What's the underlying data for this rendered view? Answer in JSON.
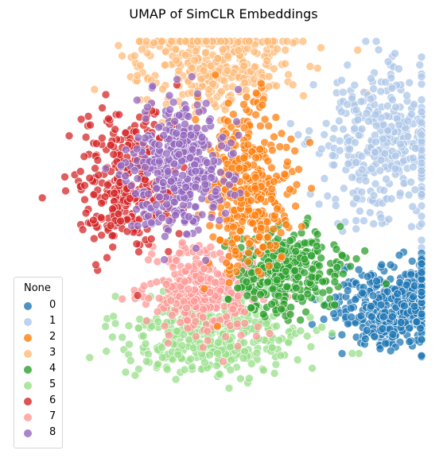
{
  "chart_data": {
    "type": "scatter",
    "title": "UMAP of SimCLR Embeddings",
    "xlabel": "",
    "ylabel": "",
    "axes_visible": false,
    "grid": false,
    "legend": {
      "title": "None",
      "placement": "lower-left"
    },
    "series": [
      {
        "name": "0",
        "color": "#1f77b4",
        "center": [
          6.3,
          -2.8
        ],
        "spread": [
          1.1,
          0.7
        ],
        "count": 420
      },
      {
        "name": "1",
        "color": "#aec7e8",
        "center": [
          5.8,
          2.8
        ],
        "spread": [
          1.2,
          1.3
        ],
        "count": 380
      },
      {
        "name": "2",
        "color": "#ff7f0e",
        "center": [
          0.9,
          1.4
        ],
        "spread": [
          0.75,
          1.4
        ],
        "count": 360
      },
      {
        "name": "3",
        "color": "#ffbb78",
        "center": [
          -0.4,
          5.8
        ],
        "spread": [
          1.6,
          1.0
        ],
        "count": 380
      },
      {
        "name": "4",
        "color": "#2ca02c",
        "center": [
          2.3,
          -1.6
        ],
        "spread": [
          0.95,
          0.75
        ],
        "count": 330
      },
      {
        "name": "5",
        "color": "#98df8a",
        "center": [
          -0.5,
          -3.8
        ],
        "spread": [
          1.7,
          0.7
        ],
        "count": 400
      },
      {
        "name": "6",
        "color": "#d62728",
        "center": [
          -3.6,
          1.5
        ],
        "spread": [
          0.9,
          1.3
        ],
        "count": 320
      },
      {
        "name": "7",
        "color": "#ff9896",
        "center": [
          -0.6,
          -2.2
        ],
        "spread": [
          1.0,
          0.8
        ],
        "count": 330
      },
      {
        "name": "8",
        "color": "#9467bd",
        "center": [
          -1.6,
          1.9
        ],
        "spread": [
          0.9,
          1.2
        ],
        "count": 380
      }
    ]
  }
}
